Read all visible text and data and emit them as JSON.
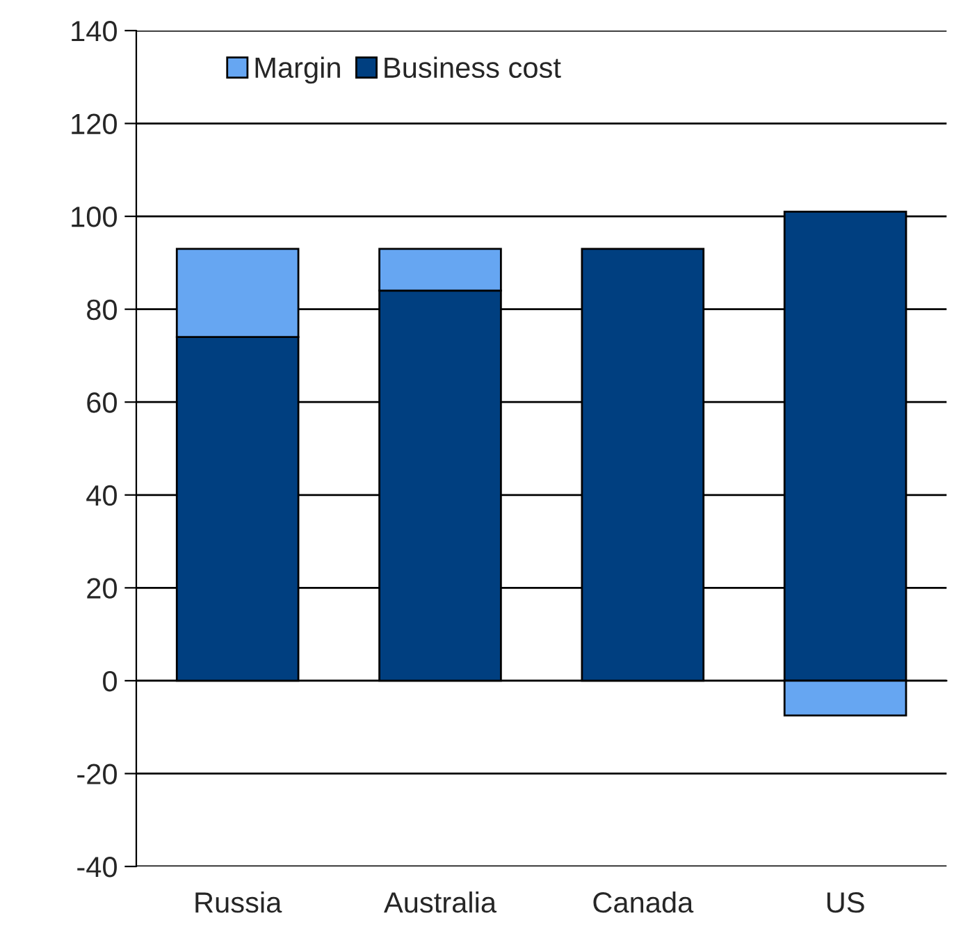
{
  "chart_data": {
    "type": "bar",
    "stacked": true,
    "categories": [
      "Russia",
      "Australia",
      "Canada",
      "US"
    ],
    "series": [
      {
        "name": "Business cost",
        "color": "#003f80",
        "values": [
          74,
          84,
          93,
          101
        ]
      },
      {
        "name": "Margin",
        "color": "#66a6f2",
        "values": [
          19,
          9,
          null,
          -7.5
        ]
      }
    ],
    "ylim": [
      -40,
      140
    ],
    "yticks": [
      -40,
      -20,
      0,
      20,
      40,
      60,
      80,
      100,
      120,
      140
    ],
    "grid": "y",
    "legend": "top left"
  }
}
